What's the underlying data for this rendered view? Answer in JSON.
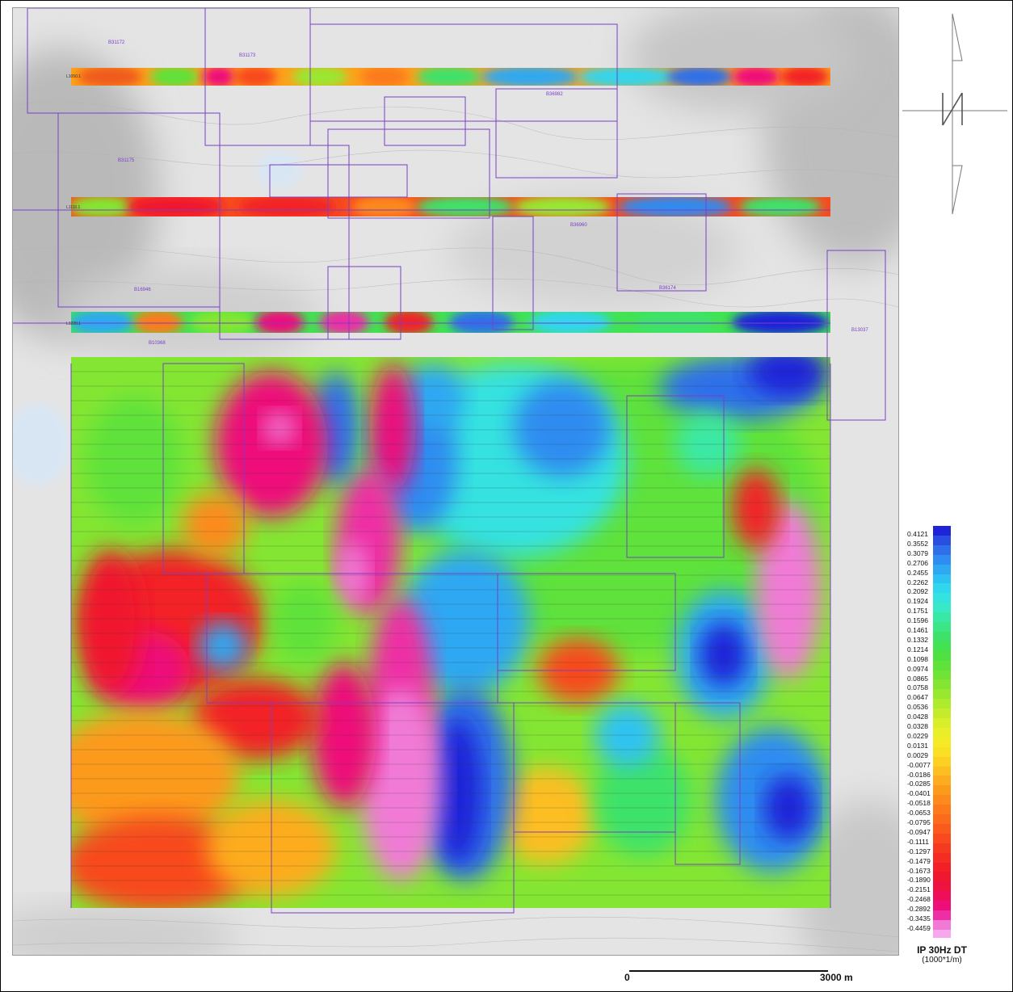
{
  "map": {
    "survey_lines_top": [
      "L1050.1",
      "L1110.1",
      "L1220.1"
    ],
    "claim_labels": [
      "B31172",
      "B31173",
      "B31175",
      "B36982",
      "B31173",
      "B16946",
      "B36174",
      "B13037",
      "B36960",
      "B10368"
    ],
    "colors": {
      "claim_outline": "#7a3fc8",
      "background": "#e6e6e6"
    }
  },
  "legend": {
    "title": "IP 30Hz DT",
    "unit": "(1000*1/m)",
    "entries": [
      {
        "value": "0.4121",
        "color": "#1f24d8"
      },
      {
        "value": "0.3552",
        "color": "#2a4fe0"
      },
      {
        "value": "0.3079",
        "color": "#2f70ea"
      },
      {
        "value": "0.2706",
        "color": "#2f8cf0"
      },
      {
        "value": "0.2455",
        "color": "#2fa8f2"
      },
      {
        "value": "0.2262",
        "color": "#2ec2f2"
      },
      {
        "value": "0.2092",
        "color": "#30d6ee"
      },
      {
        "value": "0.1924",
        "color": "#34e2e0"
      },
      {
        "value": "0.1751",
        "color": "#38e8c6"
      },
      {
        "value": "0.1596",
        "color": "#3ae8a6"
      },
      {
        "value": "0.1461",
        "color": "#3ce686"
      },
      {
        "value": "0.1332",
        "color": "#3ee26a"
      },
      {
        "value": "0.1214",
        "color": "#42e252"
      },
      {
        "value": "0.1098",
        "color": "#4fe042"
      },
      {
        "value": "0.0974",
        "color": "#5fe23a"
      },
      {
        "value": "0.0865",
        "color": "#70e436"
      },
      {
        "value": "0.0758",
        "color": "#84e632"
      },
      {
        "value": "0.0647",
        "color": "#98e830"
      },
      {
        "value": "0.0536",
        "color": "#aeea2e"
      },
      {
        "value": "0.0428",
        "color": "#c4ec2c"
      },
      {
        "value": "0.0328",
        "color": "#d8ee2a"
      },
      {
        "value": "0.0229",
        "color": "#e8ee28"
      },
      {
        "value": "0.0131",
        "color": "#f4ea26"
      },
      {
        "value": "0.0029",
        "color": "#fae024"
      },
      {
        "value": "-0.0077",
        "color": "#fcd022"
      },
      {
        "value": "-0.0186",
        "color": "#fcbe20"
      },
      {
        "value": "-0.0285",
        "color": "#fcac1e"
      },
      {
        "value": "-0.0401",
        "color": "#fc9a1c"
      },
      {
        "value": "-0.0518",
        "color": "#fc8a1c"
      },
      {
        "value": "-0.0653",
        "color": "#fc7a1c"
      },
      {
        "value": "-0.0795",
        "color": "#fc6a1c"
      },
      {
        "value": "-0.0947",
        "color": "#fa5a1c"
      },
      {
        "value": "-0.1111",
        "color": "#f84a1e"
      },
      {
        "value": "-0.1297",
        "color": "#f63a20"
      },
      {
        "value": "-0.1479",
        "color": "#f42c22"
      },
      {
        "value": "-0.1673",
        "color": "#f22026"
      },
      {
        "value": "-0.1890",
        "color": "#f0182e"
      },
      {
        "value": "-0.2151",
        "color": "#ee1240"
      },
      {
        "value": "-0.2468",
        "color": "#ee0e5a"
      },
      {
        "value": "-0.2892",
        "color": "#ee0e7a"
      },
      {
        "value": "-0.3435",
        "color": "#ee2ea4"
      },
      {
        "value": "-0.4459",
        "color": "#f07ad6"
      }
    ],
    "bottom_color": "#f7a8ec"
  },
  "scale_bar": {
    "start_label": "0",
    "end_label": "3000 m"
  }
}
